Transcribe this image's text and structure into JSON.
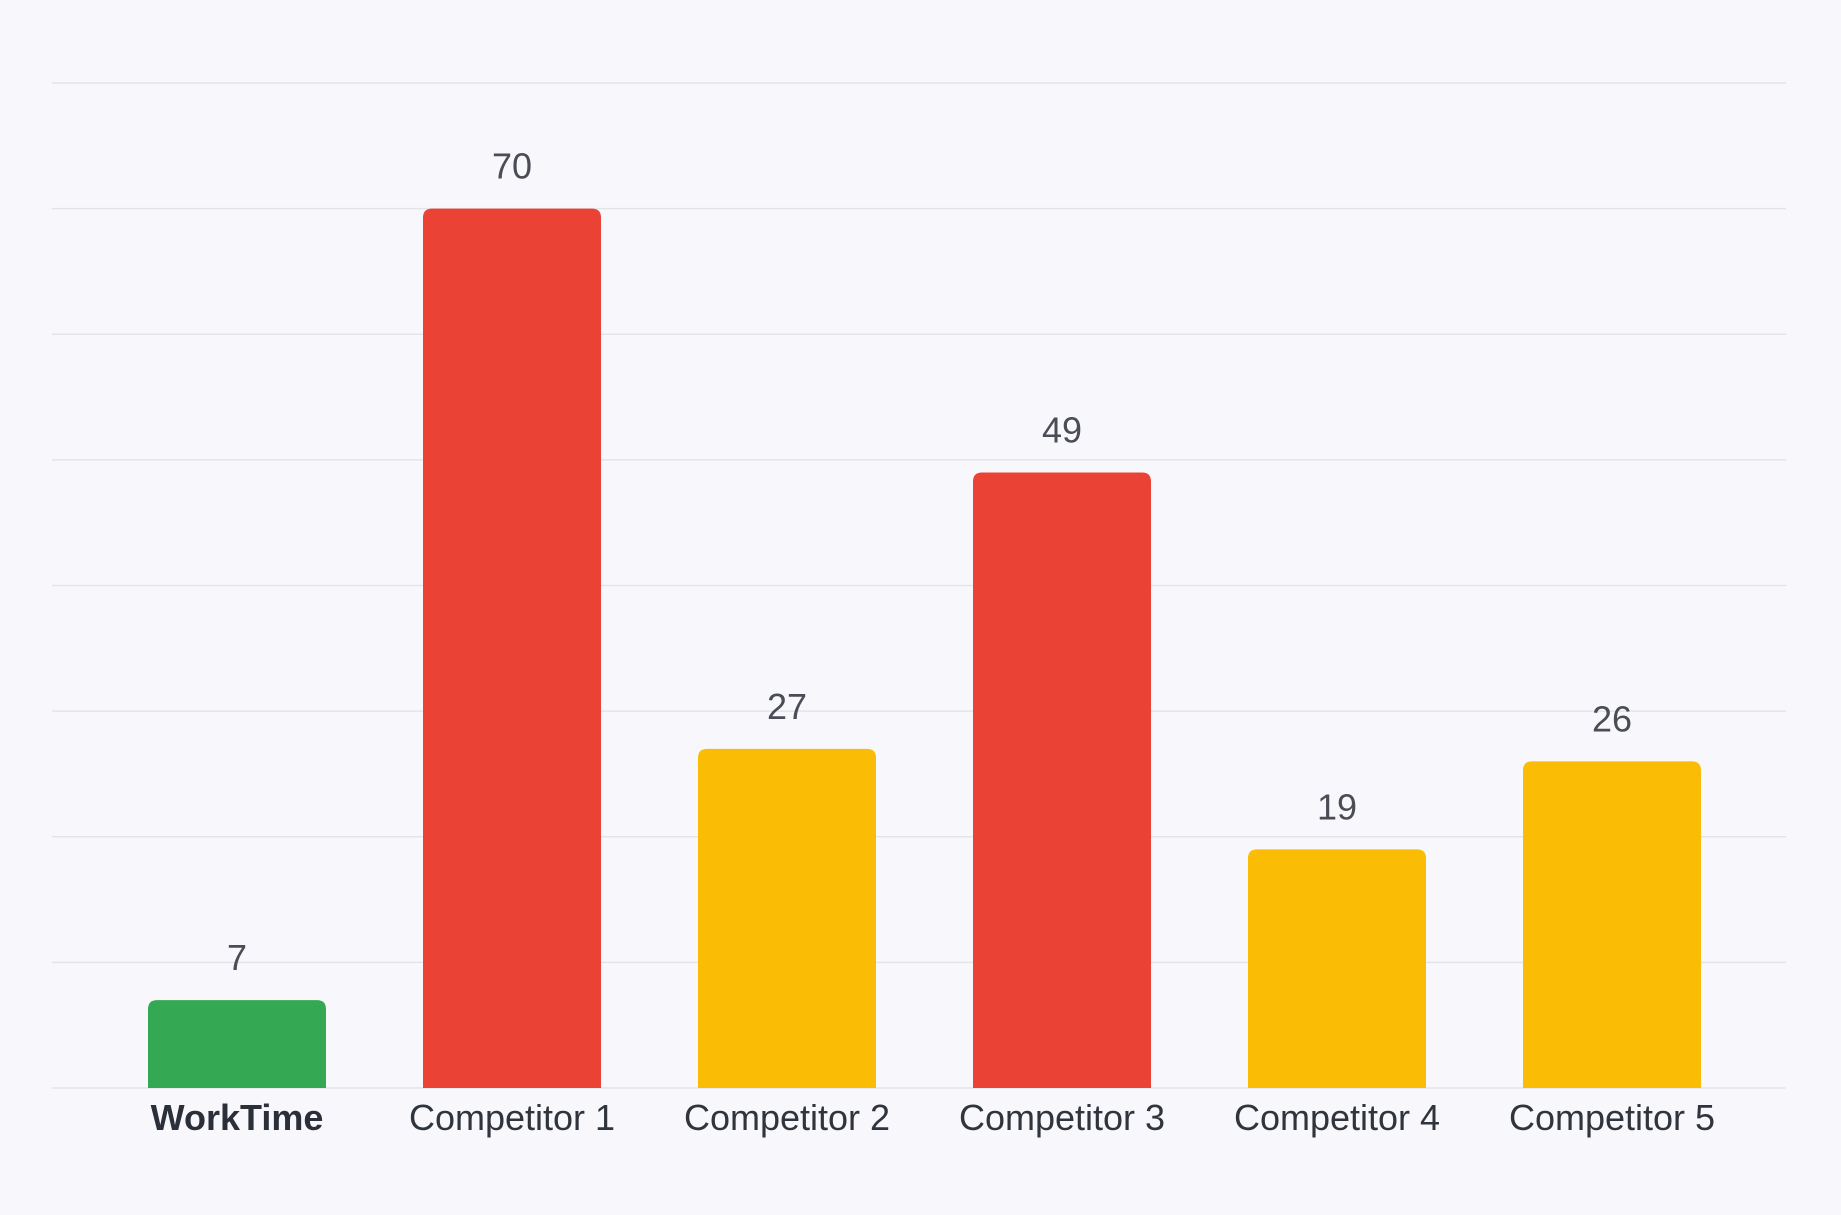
{
  "chart_data": {
    "type": "bar",
    "categories": [
      "WorkTime",
      "Competitor 1",
      "Competitor 2",
      "Competitor 3",
      "Competitor 4",
      "Competitor 5"
    ],
    "values": [
      7,
      70,
      27,
      49,
      19,
      26
    ],
    "bar_colors": [
      "#34a853",
      "#ea4335",
      "#fbbc05",
      "#ea4335",
      "#fbbc05",
      "#fbbc05"
    ],
    "highlighted_category": "WorkTime",
    "ylim": [
      0,
      80
    ],
    "y_grid_step": 10,
    "grid": true,
    "title": "",
    "xlabel": "",
    "ylabel": "",
    "data_labels": true
  },
  "colors": {
    "background": "#f8f8fc",
    "grid": "#e3e3ea",
    "label_text": "#4a4d55"
  }
}
